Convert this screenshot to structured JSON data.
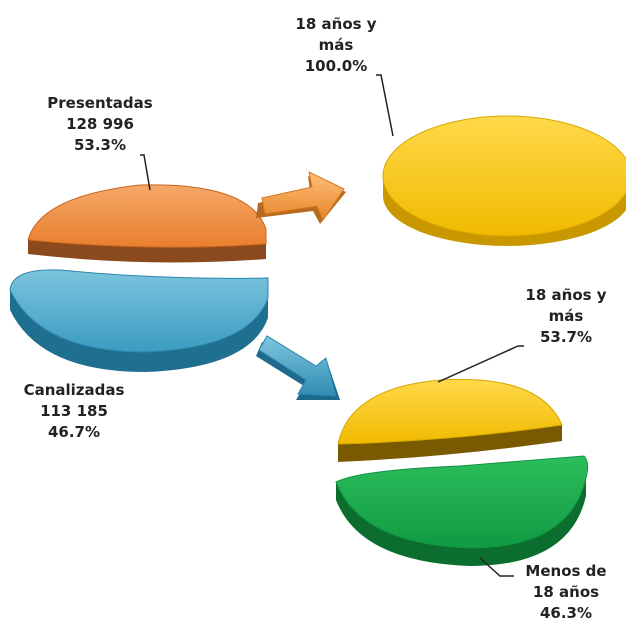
{
  "colors": {
    "presentadas": "#F08B3C",
    "canalizadas": "#3FA3C6",
    "mayores": "#F6C000",
    "menores": "#17A34A",
    "arrow_orange": "#F6A04D",
    "arrow_blue": "#3FA3C6"
  },
  "chart_data": [
    {
      "type": "pie",
      "title": "",
      "slices": [
        {
          "name": "Presentadas",
          "value": 128996,
          "percent": 53.3,
          "color": "#F08B3C"
        },
        {
          "name": "Canalizadas",
          "value": 113185,
          "percent": 46.7,
          "color": "#3FA3C6"
        }
      ],
      "labels": {
        "presentadas": {
          "line1": "Presentadas",
          "line2": "128 996",
          "line3": "53.3%"
        },
        "canalizadas": {
          "line1": "Canalizadas",
          "line2": "113 185",
          "line3": "46.7%"
        }
      }
    },
    {
      "type": "pie",
      "title": "",
      "source": "Presentadas",
      "slices": [
        {
          "name": "18 años y más",
          "percent": 100.0,
          "color": "#F6C000"
        }
      ],
      "labels": {
        "mayores": {
          "line1": "18 años y",
          "line2": "más",
          "line3": "100.0%"
        }
      }
    },
    {
      "type": "pie",
      "title": "",
      "source": "Canalizadas",
      "slices": [
        {
          "name": "18 años y más",
          "percent": 53.7,
          "color": "#F6C000"
        },
        {
          "name": "Menos de 18 años",
          "percent": 46.3,
          "color": "#17A34A"
        }
      ],
      "labels": {
        "mayores": {
          "line1": "18 años y",
          "line2": "más",
          "line3": "53.7%"
        },
        "menores": {
          "line1": "Menos de",
          "line2": "18 años",
          "line3": "46.3%"
        }
      }
    }
  ]
}
